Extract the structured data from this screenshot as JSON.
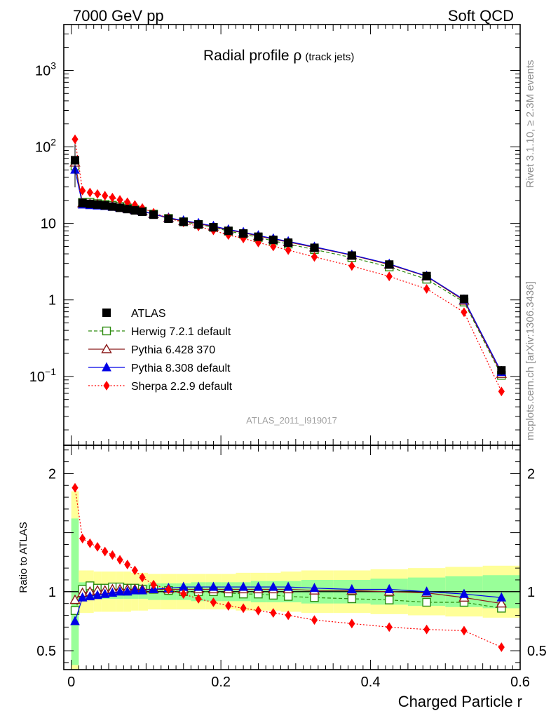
{
  "header": {
    "energy": "7000 GeV pp",
    "process": "Soft QCD"
  },
  "side_labels": {
    "rivet": "Rivet 3.1.10, ≥ 2.3M events",
    "source": "mcplots.cern.ch [arXiv:1306.3436]"
  },
  "watermark": "ATLAS_2011_I919017",
  "chart_data": {
    "type": "scatter",
    "title": "Radial profile ρ",
    "subtitle": "(track jets)",
    "xlabel": "Charged Particle r",
    "ylabel_ratio": "Ratio to ATLAS",
    "xlim": [
      -0.01,
      0.6
    ],
    "ylim_main_log10": [
      -1.9,
      3.6
    ],
    "ylim_ratio": [
      0.34,
      2.24
    ],
    "x": [
      0.005,
      0.015,
      0.025,
      0.035,
      0.045,
      0.055,
      0.065,
      0.075,
      0.085,
      0.095,
      0.11,
      0.13,
      0.15,
      0.17,
      0.19,
      0.21,
      0.23,
      0.25,
      0.27,
      0.29,
      0.325,
      0.375,
      0.425,
      0.475,
      0.525,
      0.575
    ],
    "x_tick_labels": [
      "0",
      "0.2",
      "0.4",
      "0.6"
    ],
    "main_y_tick_labels": [
      "10⁻¹",
      "1",
      "10",
      "10²",
      "10³"
    ],
    "ratio_y_tick_labels": [
      "0.5",
      "1",
      "2"
    ],
    "series": [
      {
        "name": "ATLAS",
        "color": "#000000",
        "marker": "square-filled",
        "line": "none",
        "values": [
          67,
          18.5,
          18,
          17.6,
          17.2,
          16.6,
          16,
          15.4,
          14.8,
          14.2,
          13,
          11.5,
          10.5,
          9.7,
          8.9,
          8.0,
          7.4,
          6.7,
          6.1,
          5.6,
          4.8,
          3.8,
          2.9,
          2.05,
          1.03,
          0.12
        ],
        "band_inner": [
          0.62,
          0.08,
          0.06,
          0.06,
          0.06,
          0.06,
          0.06,
          0.06,
          0.06,
          0.06,
          0.07,
          0.07,
          0.07,
          0.08,
          0.08,
          0.08,
          0.08,
          0.09,
          0.09,
          0.09,
          0.1,
          0.1,
          0.11,
          0.12,
          0.13,
          0.14
        ],
        "band_outer": [
          0.85,
          0.18,
          0.18,
          0.17,
          0.17,
          0.17,
          0.17,
          0.17,
          0.16,
          0.16,
          0.15,
          0.15,
          0.15,
          0.15,
          0.15,
          0.15,
          0.16,
          0.16,
          0.16,
          0.17,
          0.18,
          0.18,
          0.19,
          0.2,
          0.21,
          0.22
        ]
      },
      {
        "name": "Herwig 7.2.1 default",
        "color": "#2d8c0f",
        "marker": "square-open",
        "line": "dashed",
        "ratios": [
          0.84,
          1.02,
          1.05,
          1.03,
          1.03,
          1.04,
          1.04,
          1.03,
          1.03,
          1.02,
          1.02,
          1.01,
          1.0,
          1.0,
          1.0,
          0.99,
          0.98,
          0.98,
          0.97,
          0.96,
          0.95,
          0.94,
          0.93,
          0.91,
          0.91,
          0.86
        ]
      },
      {
        "name": "Pythia 6.428 370",
        "color": "#8b1a1a",
        "marker": "triangle-open",
        "line": "solid",
        "ratios": [
          0.93,
          0.99,
          1.0,
          1.01,
          1.01,
          1.02,
          1.02,
          1.02,
          1.02,
          1.02,
          1.02,
          1.02,
          1.02,
          1.02,
          1.02,
          1.02,
          1.02,
          1.02,
          1.02,
          1.02,
          1.01,
          1.01,
          1.0,
          0.99,
          0.95,
          0.9
        ]
      },
      {
        "name": "Pythia 8.308 default",
        "color": "#0000e6",
        "marker": "triangle-filled",
        "line": "solid",
        "ratios": [
          0.75,
          0.95,
          0.96,
          0.97,
          0.98,
          0.99,
          1.0,
          1.0,
          1.01,
          1.01,
          1.02,
          1.03,
          1.04,
          1.04,
          1.04,
          1.04,
          1.04,
          1.04,
          1.04,
          1.04,
          1.03,
          1.02,
          1.02,
          1.0,
          0.98,
          0.95
        ]
      },
      {
        "name": "Sherpa 2.2.9 default",
        "color": "#ff0000",
        "marker": "diamond-filled",
        "line": "dotted",
        "ratios": [
          1.88,
          1.45,
          1.41,
          1.38,
          1.34,
          1.31,
          1.27,
          1.23,
          1.18,
          1.12,
          1.06,
          1.02,
          0.98,
          0.94,
          0.91,
          0.88,
          0.86,
          0.84,
          0.82,
          0.8,
          0.76,
          0.73,
          0.7,
          0.68,
          0.67,
          0.53
        ]
      }
    ]
  }
}
